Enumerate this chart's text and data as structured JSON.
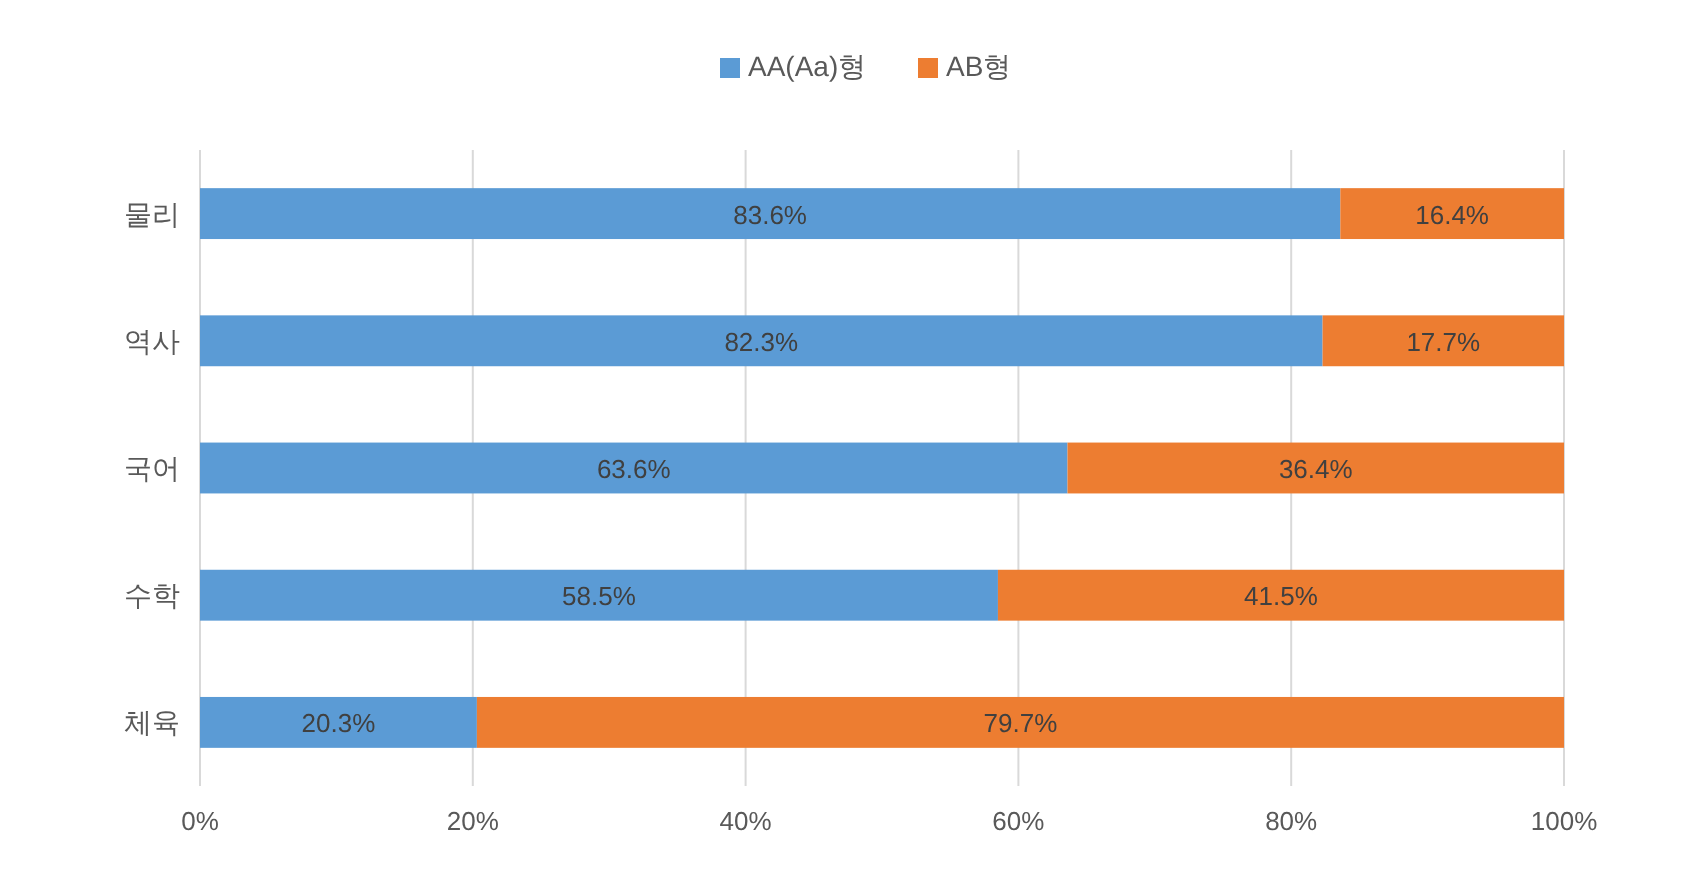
{
  "chart_data": {
    "type": "bar",
    "orientation": "horizontal",
    "stacked": true,
    "categories": [
      "물리",
      "역사",
      "국어",
      "수학",
      "체육"
    ],
    "series": [
      {
        "name": "AA(Aa)형",
        "color": "#5b9bd5",
        "values": [
          83.6,
          82.3,
          63.6,
          58.5,
          20.3
        ],
        "value_labels": [
          "83.6%",
          "82.3%",
          "63.6%",
          "58.5%",
          "20.3%"
        ]
      },
      {
        "name": "AB형",
        "color": "#ed7d31",
        "values": [
          16.4,
          17.7,
          36.4,
          41.5,
          79.7
        ],
        "value_labels": [
          "16.4%",
          "17.7%",
          "36.4%",
          "41.5%",
          "79.7%"
        ]
      }
    ],
    "xlim": [
      0,
      100
    ],
    "xticks": [
      {
        "value": 0,
        "label": "0%"
      },
      {
        "value": 20,
        "label": "20%"
      },
      {
        "value": 40,
        "label": "40%"
      },
      {
        "value": 60,
        "label": "60%"
      },
      {
        "value": 80,
        "label": "80%"
      },
      {
        "value": 100,
        "label": "100%"
      }
    ],
    "grid": "x",
    "legend": "top"
  }
}
